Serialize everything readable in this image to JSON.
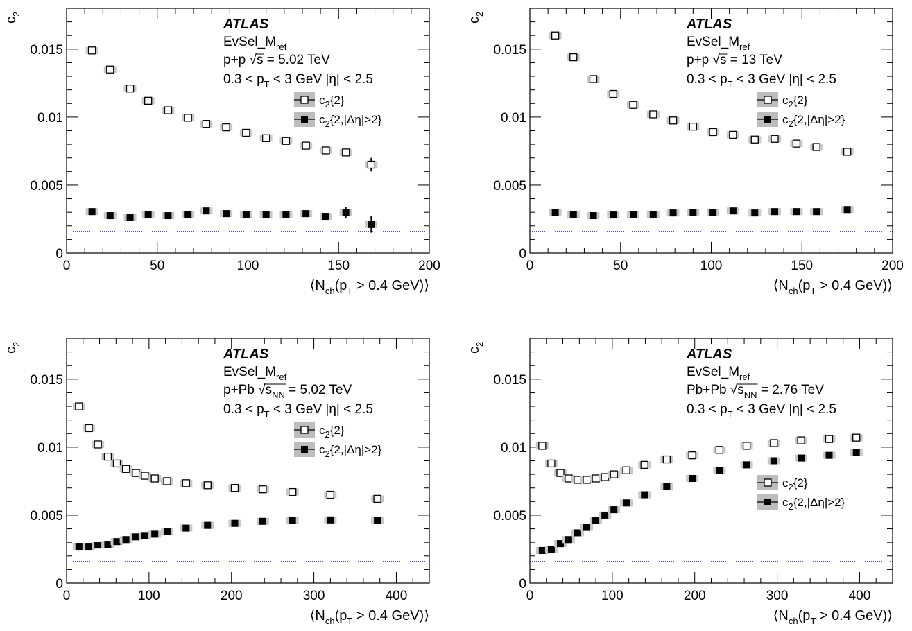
{
  "chart_data": [
    {
      "type": "scatter",
      "atlas": "ATLAS",
      "evsel": {
        "main": "EvSel_M",
        "sub": "ref"
      },
      "system": "p+p",
      "energy": {
        "sym": "s",
        "sub": "",
        "value": "= 5.02 TeV"
      },
      "cut": {
        "a": "0.3 < p",
        "b": "T",
        "c": " < 3 GeV |η| < 2.5"
      },
      "ylabel": {
        "main": "c",
        "sub": "2"
      },
      "xlabel": {
        "a": "⟨N",
        "b": "ch",
        "c": "(p",
        "d": "T",
        "e": " > 0.4 GeV)⟩"
      },
      "xlim": [
        0,
        200
      ],
      "ylim": [
        0,
        0.018
      ],
      "xticks": [
        0,
        50,
        100,
        150,
        200
      ],
      "yticks": [
        0,
        0.005,
        0.01,
        0.015
      ],
      "yticklabels": [
        "0",
        "0.005",
        "0.01",
        "0.015"
      ],
      "reference_line": 0.0016,
      "legend_position": "right",
      "series": [
        {
          "name": "c2{2}",
          "label_main": "c",
          "label_sub": "2",
          "label_rest": "{2}",
          "marker": "open-square",
          "x": [
            14,
            24,
            35,
            45,
            56,
            67,
            77,
            88,
            99,
            110,
            121,
            132,
            143,
            154,
            168
          ],
          "y": [
            0.0149,
            0.0135,
            0.0121,
            0.0112,
            0.0105,
            0.00995,
            0.0095,
            0.00925,
            0.00885,
            0.00845,
            0.00825,
            0.0079,
            0.00755,
            0.0074,
            0.0065
          ],
          "err": [
            0.0002,
            0.0002,
            0.0002,
            0.0002,
            0.0002,
            0.0002,
            0.0002,
            0.0002,
            0.0002,
            0.0002,
            0.0002,
            0.0002,
            0.0002,
            0.0002,
            0.0005
          ]
        },
        {
          "name": "c2{2,|Δη|>2}",
          "label_main": "c",
          "label_sub": "2",
          "label_rest": "{2,|Δη|>2}",
          "marker": "filled-square",
          "x": [
            14,
            24,
            35,
            45,
            56,
            67,
            77,
            88,
            99,
            110,
            121,
            132,
            143,
            154,
            168
          ],
          "y": [
            0.00305,
            0.00275,
            0.00265,
            0.00285,
            0.00275,
            0.00285,
            0.0031,
            0.0029,
            0.00285,
            0.00285,
            0.00285,
            0.0029,
            0.0027,
            0.003,
            0.0021
          ],
          "err": [
            0.0002,
            0.0002,
            0.0002,
            0.0002,
            0.0002,
            0.0002,
            0.0002,
            0.0002,
            0.0002,
            0.0002,
            0.0002,
            0.0002,
            0.0002,
            0.0004,
            0.0006
          ]
        }
      ]
    },
    {
      "type": "scatter",
      "atlas": "ATLAS",
      "evsel": {
        "main": "EvSel_M",
        "sub": "ref"
      },
      "system": "p+p",
      "energy": {
        "sym": "s",
        "sub": "",
        "value": "= 13 TeV"
      },
      "cut": {
        "a": "0.3 < p",
        "b": "T",
        "c": " < 3 GeV |η| < 2.5"
      },
      "ylabel": {
        "main": "c",
        "sub": "2"
      },
      "xlabel": {
        "a": "⟨N",
        "b": "ch",
        "c": "(p",
        "d": "T",
        "e": " > 0.4 GeV)⟩"
      },
      "xlim": [
        0,
        200
      ],
      "ylim": [
        0,
        0.018
      ],
      "xticks": [
        0,
        50,
        100,
        150,
        200
      ],
      "yticks": [
        0,
        0.005,
        0.01,
        0.015
      ],
      "yticklabels": [
        "0",
        "0.005",
        "0.01",
        "0.015"
      ],
      "reference_line": 0.0016,
      "legend_position": "right",
      "series": [
        {
          "name": "c2{2}",
          "label_main": "c",
          "label_sub": "2",
          "label_rest": "{2}",
          "marker": "open-square",
          "x": [
            14,
            24,
            35,
            46,
            57,
            68,
            79,
            90,
            101,
            112,
            124,
            135,
            147,
            158,
            175
          ],
          "y": [
            0.016,
            0.0144,
            0.0128,
            0.0117,
            0.0109,
            0.0102,
            0.00975,
            0.0093,
            0.0089,
            0.0087,
            0.00835,
            0.0084,
            0.00805,
            0.0078,
            0.00745
          ],
          "err": [
            0.0002,
            0.0002,
            0.0002,
            0.0002,
            0.0002,
            0.0002,
            0.0002,
            0.0002,
            0.0002,
            0.0002,
            0.0002,
            0.0002,
            0.0002,
            0.0002,
            0.0002
          ]
        },
        {
          "name": "c2{2,|Δη|>2}",
          "label_main": "c",
          "label_sub": "2",
          "label_rest": "{2,|Δη|>2}",
          "marker": "filled-square",
          "x": [
            14,
            24,
            35,
            46,
            57,
            68,
            79,
            90,
            101,
            112,
            124,
            135,
            147,
            158,
            175
          ],
          "y": [
            0.003,
            0.00285,
            0.00275,
            0.0028,
            0.00285,
            0.00285,
            0.00295,
            0.003,
            0.003,
            0.0031,
            0.00295,
            0.00305,
            0.00305,
            0.00305,
            0.0032
          ],
          "err": [
            0.0002,
            0.0002,
            0.0002,
            0.0002,
            0.0002,
            0.0002,
            0.0002,
            0.0002,
            0.0002,
            0.0002,
            0.0002,
            0.0002,
            0.0002,
            0.0002,
            0.0002
          ]
        }
      ]
    },
    {
      "type": "scatter",
      "atlas": "ATLAS",
      "evsel": {
        "main": "EvSel_M",
        "sub": "ref"
      },
      "system": "p+Pb",
      "energy": {
        "sym": "s",
        "sub": "NN",
        "value": "= 5.02 TeV"
      },
      "cut": {
        "a": "0.3 < p",
        "b": "T",
        "c": " < 3 GeV |η| < 2.5"
      },
      "ylabel": {
        "main": "c",
        "sub": "2"
      },
      "xlabel": {
        "a": "⟨N",
        "b": "ch",
        "c": "(p",
        "d": "T",
        "e": " > 0.4 GeV)⟩"
      },
      "xlim": [
        0,
        440
      ],
      "ylim": [
        0,
        0.018
      ],
      "xticks": [
        0,
        100,
        200,
        300,
        400
      ],
      "yticks": [
        0,
        0.005,
        0.01,
        0.015
      ],
      "yticklabels": [
        "0",
        "0.005",
        "0.01",
        "0.015"
      ],
      "reference_line": 0.0016,
      "legend_position": "right",
      "series": [
        {
          "name": "c2{2}",
          "label_main": "c",
          "label_sub": "2",
          "label_rest": "{2}",
          "marker": "open-square",
          "x": [
            15,
            27,
            38,
            50,
            61,
            72,
            84,
            95,
            107,
            122,
            145,
            171,
            204,
            238,
            274,
            320,
            377
          ],
          "y": [
            0.013,
            0.0114,
            0.0102,
            0.0093,
            0.0088,
            0.0084,
            0.0081,
            0.0079,
            0.0077,
            0.0075,
            0.00735,
            0.0072,
            0.007,
            0.0069,
            0.0067,
            0.0065,
            0.0062
          ],
          "err": [
            0.0002,
            0.0002,
            0.0002,
            0.0002,
            0.0002,
            0.0002,
            0.0002,
            0.0002,
            0.0002,
            0.0002,
            0.0002,
            0.0002,
            0.0002,
            0.0002,
            0.0002,
            0.0002,
            0.0002
          ]
        },
        {
          "name": "c2{2,|Δη|>2}",
          "label_main": "c",
          "label_sub": "2",
          "label_rest": "{2,|Δη|>2}",
          "marker": "filled-square",
          "x": [
            15,
            27,
            38,
            50,
            61,
            72,
            84,
            95,
            107,
            122,
            145,
            171,
            204,
            238,
            274,
            320,
            377
          ],
          "y": [
            0.0027,
            0.0027,
            0.0028,
            0.00285,
            0.00305,
            0.0032,
            0.0034,
            0.0035,
            0.0036,
            0.0038,
            0.00405,
            0.00425,
            0.0044,
            0.00455,
            0.0046,
            0.00465,
            0.0046
          ],
          "err": [
            0.0002,
            0.0002,
            0.0002,
            0.0002,
            0.0002,
            0.0002,
            0.0002,
            0.0002,
            0.0002,
            0.0002,
            0.0002,
            0.0002,
            0.0002,
            0.0002,
            0.0002,
            0.0002,
            0.0002
          ]
        }
      ]
    },
    {
      "type": "scatter",
      "atlas": "ATLAS",
      "evsel": {
        "main": "EvSel_M",
        "sub": "ref"
      },
      "system": "Pb+Pb",
      "energy": {
        "sym": "s",
        "sub": "NN",
        "value": "= 2.76 TeV"
      },
      "cut": {
        "a": "0.3 < p",
        "b": "T",
        "c": " < 3 GeV |η| < 2.5"
      },
      "ylabel": {
        "main": "c",
        "sub": "2"
      },
      "xlabel": {
        "a": "⟨N",
        "b": "ch",
        "c": "(p",
        "d": "T",
        "e": " > 0.4 GeV)⟩"
      },
      "xlim": [
        0,
        440
      ],
      "ylim": [
        0,
        0.018
      ],
      "xticks": [
        0,
        100,
        200,
        300,
        400
      ],
      "yticks": [
        0,
        0.005,
        0.01,
        0.015
      ],
      "yticklabels": [
        "0",
        "0.005",
        "0.01",
        "0.015"
      ],
      "reference_line": 0.0016,
      "legend_position": "right",
      "series": [
        {
          "name": "c2{2}",
          "label_main": "c",
          "label_sub": "2",
          "label_rest": "{2}",
          "marker": "open-square",
          "x": [
            15,
            26,
            37,
            47,
            58,
            69,
            80,
            91,
            102,
            117,
            139,
            166,
            197,
            230,
            263,
            296,
            329,
            363,
            396
          ],
          "y": [
            0.0101,
            0.0088,
            0.0081,
            0.0077,
            0.0076,
            0.0076,
            0.0077,
            0.0078,
            0.008,
            0.0083,
            0.0087,
            0.0091,
            0.0094,
            0.0098,
            0.0101,
            0.0103,
            0.0105,
            0.0106,
            0.0107
          ],
          "err": [
            0.0002,
            0.0002,
            0.0002,
            0.0002,
            0.0002,
            0.0002,
            0.0002,
            0.0002,
            0.0002,
            0.0002,
            0.0002,
            0.0002,
            0.0002,
            0.0002,
            0.0002,
            0.0002,
            0.0002,
            0.0002,
            0.0002
          ]
        },
        {
          "name": "c2{2,|Δη|>2}",
          "label_main": "c",
          "label_sub": "2",
          "label_rest": "{2,|Δη|>2}",
          "marker": "filled-square",
          "x": [
            15,
            26,
            37,
            47,
            58,
            69,
            80,
            91,
            102,
            117,
            139,
            166,
            197,
            230,
            263,
            296,
            329,
            363,
            396
          ],
          "y": [
            0.0024,
            0.0025,
            0.0029,
            0.0032,
            0.0037,
            0.0041,
            0.0046,
            0.005,
            0.0054,
            0.0059,
            0.0065,
            0.0071,
            0.0077,
            0.0083,
            0.0087,
            0.009,
            0.0092,
            0.0094,
            0.0096
          ],
          "err": [
            0.0002,
            0.0002,
            0.0002,
            0.0002,
            0.0002,
            0.0002,
            0.0002,
            0.0002,
            0.0002,
            0.0002,
            0.0002,
            0.0002,
            0.0002,
            0.0002,
            0.0002,
            0.0002,
            0.0002,
            0.0002,
            0.0002
          ]
        }
      ]
    }
  ]
}
